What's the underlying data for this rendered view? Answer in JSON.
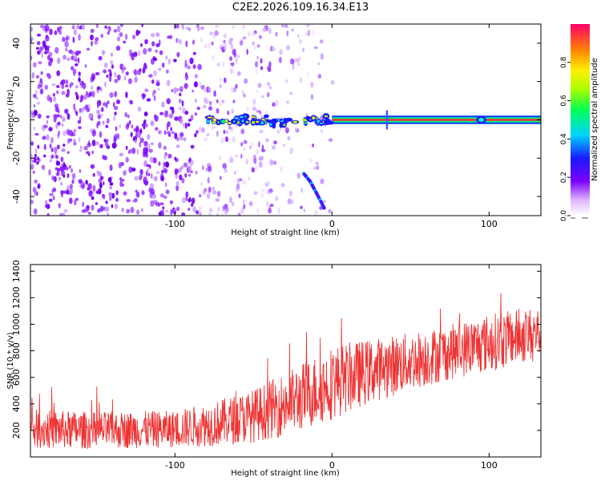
{
  "title": "C2E2.2026.109.16.34.E13",
  "chart_data": [
    {
      "type": "heatmap",
      "name": "spectrogram",
      "xlabel": "Height of straight line (km)",
      "ylabel": "Frequency (Hz)",
      "xlim": [
        -192,
        133
      ],
      "ylim": [
        -50,
        50
      ],
      "xticks": [
        -100,
        0,
        100
      ],
      "yticks": [
        -40,
        -20,
        0,
        20,
        40
      ],
      "colorbar": {
        "label": "Normalized spectral amplitude",
        "range": [
          0,
          1
        ],
        "ticks": [
          "0.0",
          "0.2",
          "0.4",
          "0.6",
          "0.8"
        ],
        "tick_values": [
          0,
          0.2,
          0.4,
          0.6,
          0.8
        ]
      },
      "features": [
        {
          "name": "carrier-line",
          "freq": 0,
          "x_start": 0,
          "x_end": 133,
          "amplitude": 0.95
        },
        {
          "name": "echo-cluster",
          "freq": 0,
          "x_start": -80,
          "x_end": 0,
          "amplitude": 0.6
        },
        {
          "name": "sloped-echo",
          "points": [
            [
              -18,
              -28
            ],
            [
              -14,
              -32
            ],
            [
              -10,
              -38
            ],
            [
              -5,
              -46
            ]
          ]
        },
        {
          "name": "spike-35km",
          "x": 35,
          "freq_range": [
            -5,
            5
          ]
        },
        {
          "name": "blob-95km",
          "x": 95,
          "freq": 0
        }
      ]
    },
    {
      "type": "line",
      "name": "snr",
      "xlabel": "Height of straight line (km)",
      "ylabel": "SNR (10 * v/v)",
      "xlim": [
        -192,
        133
      ],
      "ylim": [
        0,
        1450
      ],
      "xticks": [
        -100,
        0,
        100
      ],
      "yticks": [
        200,
        400,
        600,
        800,
        1000,
        1200,
        1400
      ],
      "color": "#ee3333",
      "trend": {
        "x": [
          -192,
          -150,
          -100,
          -75,
          -50,
          -25,
          0,
          25,
          50,
          75,
          100,
          133
        ],
        "mean": [
          210,
          200,
          210,
          250,
          310,
          420,
          560,
          650,
          720,
          790,
          860,
          940
        ],
        "spread": [
          150,
          140,
          140,
          170,
          200,
          250,
          280,
          240,
          220,
          210,
          220,
          200
        ]
      }
    }
  ]
}
